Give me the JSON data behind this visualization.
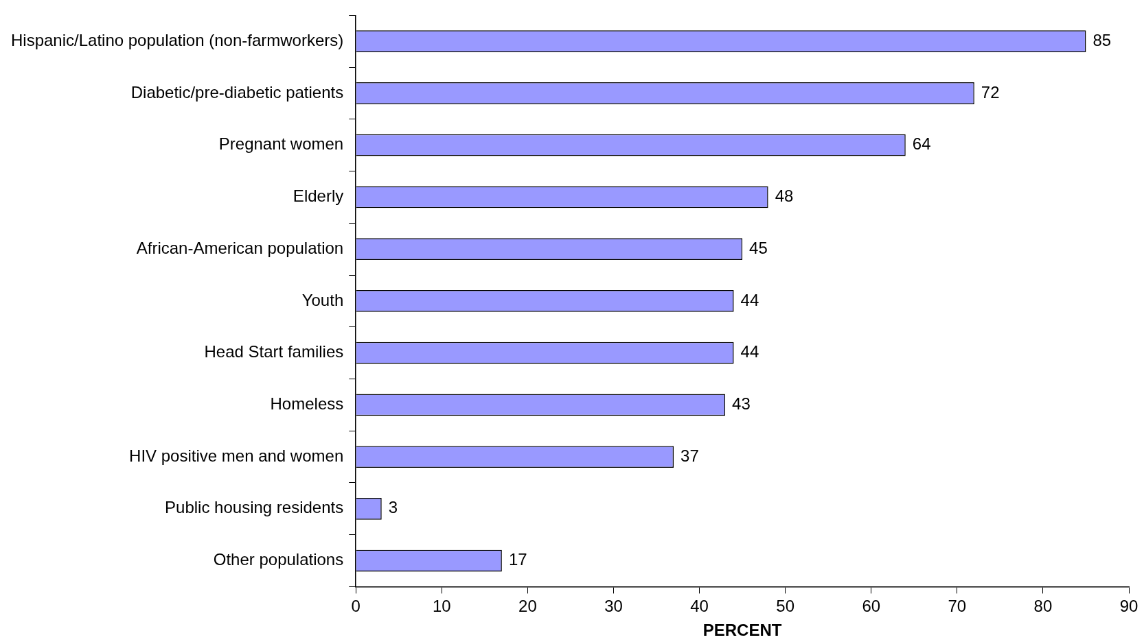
{
  "chart_data": {
    "type": "bar",
    "orientation": "horizontal",
    "xlabel": "PERCENT",
    "categories": [
      "Hispanic/Latino population (non-farmworkers)",
      "Diabetic/pre-diabetic patients",
      "Pregnant women",
      "Elderly",
      "African-American population",
      "Youth",
      "Head Start families",
      "Homeless",
      "HIV positive men and women",
      "Public housing residents",
      "Other populations"
    ],
    "values": [
      85,
      72,
      64,
      48,
      45,
      44,
      44,
      43,
      37,
      3,
      17
    ],
    "color": "#9999ff",
    "xlim": [
      0,
      90
    ],
    "xticks": [
      0,
      10,
      20,
      30,
      40,
      50,
      60,
      70,
      80,
      90
    ],
    "data_labels": true,
    "grid": false,
    "legend": false
  }
}
